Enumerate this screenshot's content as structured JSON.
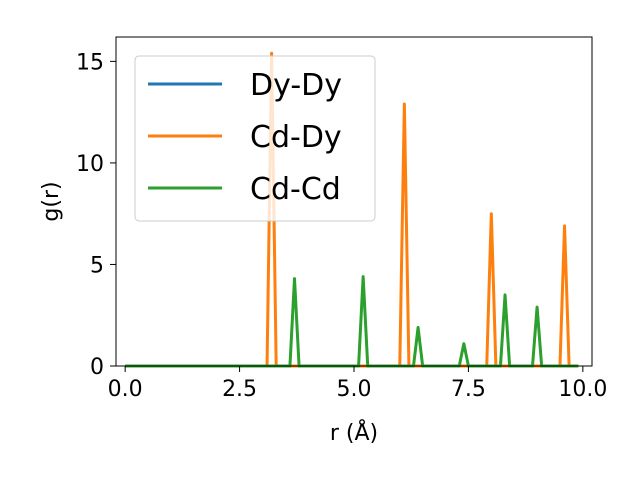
{
  "chart_data": {
    "type": "line",
    "xlabel": "r (Å)",
    "ylabel": "g(r)",
    "xlim": [
      -0.2,
      10.2
    ],
    "ylim": [
      0,
      16.2
    ],
    "xticks": [
      0.0,
      2.5,
      5.0,
      7.5,
      10.0
    ],
    "xtick_labels": [
      "0.0",
      "2.5",
      "5.0",
      "7.5",
      "10.0"
    ],
    "yticks": [
      0,
      5,
      10,
      15
    ],
    "ytick_labels": [
      "0",
      "5",
      "10",
      "15"
    ],
    "grid": false,
    "legend_position": "top-left",
    "series": [
      {
        "name": "Dy-Dy",
        "color": "#1f77b4",
        "x": [
          0.0,
          9.9
        ],
        "y": [
          0,
          0
        ]
      },
      {
        "name": "Cd-Dy",
        "color": "#ff7f0e",
        "x": [
          0.0,
          3.1,
          3.2,
          3.3,
          6.0,
          6.1,
          6.2,
          7.9,
          8.0,
          8.1,
          9.5,
          9.6,
          9.7,
          9.9
        ],
        "y": [
          0,
          0,
          15.4,
          0,
          0,
          12.9,
          0,
          0,
          7.5,
          0,
          0,
          6.9,
          0,
          0
        ]
      },
      {
        "name": "Cd-Cd",
        "color": "#2ca02c",
        "x": [
          0.0,
          3.6,
          3.7,
          3.8,
          5.1,
          5.2,
          5.3,
          6.3,
          6.4,
          6.5,
          7.3,
          7.4,
          7.5,
          8.2,
          8.3,
          8.4,
          8.9,
          9.0,
          9.1,
          9.9
        ],
        "y": [
          0,
          0,
          4.3,
          0,
          0,
          4.4,
          0,
          0,
          1.9,
          0,
          0,
          1.1,
          0,
          0,
          3.5,
          0,
          0,
          2.9,
          0,
          0
        ]
      }
    ]
  }
}
